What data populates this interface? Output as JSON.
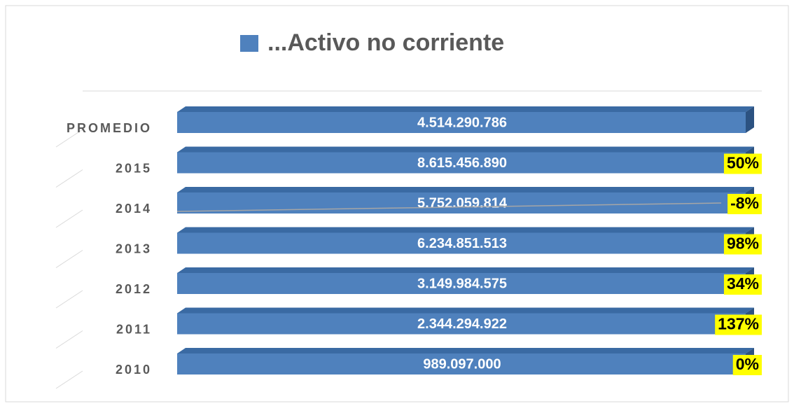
{
  "title": "...Activo no corriente",
  "rows": [
    {
      "label": "PROMEDIO",
      "amount": "4.514.290.786"
    },
    {
      "label": "2015",
      "amount": "8.615.456.890",
      "change": "50%"
    },
    {
      "label": "2014",
      "amount": "5.752.059.814",
      "change": "-8%"
    },
    {
      "label": "2013",
      "amount": "6.234.851.513",
      "change": "98%"
    },
    {
      "label": "2012",
      "amount": "3.149.984.575",
      "change": "34%"
    },
    {
      "label": "2011",
      "amount": "2.344.294.922",
      "change": "137%"
    },
    {
      "label": "2010",
      "amount": "989.097.000",
      "change": "0%"
    }
  ]
}
